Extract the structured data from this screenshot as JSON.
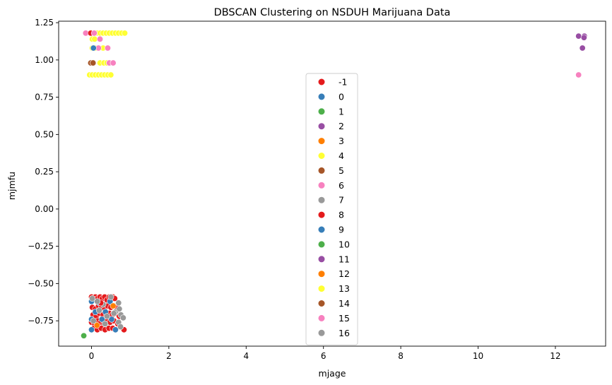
{
  "chart_data": {
    "type": "scatter",
    "title": "DBSCAN Clustering on NSDUH Marijuana Data",
    "xlabel": "mjage",
    "ylabel": "mjmfu",
    "xlim": [
      -0.85,
      13.3
    ],
    "ylim": [
      -0.92,
      1.26
    ],
    "x_ticks": [
      0,
      2,
      4,
      6,
      8,
      10,
      12
    ],
    "y_ticks": [
      -0.75,
      -0.5,
      -0.25,
      0.0,
      0.25,
      0.5,
      0.75,
      1.0,
      1.25
    ],
    "y_tick_labels": [
      "−0.75",
      "−0.50",
      "−0.25",
      "0.00",
      "0.25",
      "0.50",
      "0.75",
      "1.00",
      "1.25"
    ],
    "grid": false,
    "legend_position": "center",
    "series": [
      {
        "name": "-1",
        "color": "#e41a1c",
        "points": [
          [
            0.0,
            -0.59
          ],
          [
            0.05,
            -0.61
          ],
          [
            0.1,
            -0.59
          ],
          [
            0.16,
            -0.6
          ],
          [
            0.22,
            -0.59
          ],
          [
            0.28,
            -0.6
          ],
          [
            0.34,
            -0.59
          ],
          [
            0.4,
            -0.61
          ],
          [
            0.46,
            -0.59
          ],
          [
            0.55,
            -0.59
          ],
          [
            0.6,
            -0.6
          ],
          [
            0.02,
            -0.66
          ],
          [
            0.1,
            -0.67
          ],
          [
            0.18,
            -0.65
          ],
          [
            0.26,
            -0.66
          ],
          [
            0.34,
            -0.67
          ],
          [
            0.42,
            -0.65
          ],
          [
            0.5,
            -0.66
          ],
          [
            0.58,
            -0.65
          ],
          [
            0.66,
            -0.66
          ],
          [
            0.04,
            -0.71
          ],
          [
            0.12,
            -0.72
          ],
          [
            0.2,
            -0.7
          ],
          [
            0.3,
            -0.71
          ],
          [
            0.38,
            -0.72
          ],
          [
            0.46,
            -0.7
          ],
          [
            0.54,
            -0.71
          ],
          [
            0.64,
            -0.7
          ],
          [
            0.72,
            -0.72
          ],
          [
            0.0,
            -0.76
          ],
          [
            0.08,
            -0.77
          ],
          [
            0.16,
            -0.75
          ],
          [
            0.24,
            -0.76
          ],
          [
            0.32,
            -0.77
          ],
          [
            0.4,
            -0.75
          ],
          [
            0.48,
            -0.76
          ],
          [
            0.58,
            -0.75
          ],
          [
            0.68,
            -0.77
          ],
          [
            0.06,
            -0.8
          ],
          [
            0.15,
            -0.81
          ],
          [
            0.25,
            -0.8
          ],
          [
            0.35,
            -0.81
          ],
          [
            0.45,
            -0.8
          ],
          [
            0.55,
            -0.8
          ],
          [
            0.84,
            -0.81
          ]
        ]
      },
      {
        "name": "0",
        "color": "#377eb8",
        "points": [
          [
            0.0,
            -0.62
          ],
          [
            0.2,
            -0.63
          ],
          [
            0.48,
            -0.62
          ],
          [
            0.1,
            -0.69
          ],
          [
            0.36,
            -0.69
          ],
          [
            0.0,
            -0.74
          ],
          [
            0.27,
            -0.74
          ],
          [
            0.52,
            -0.74
          ],
          [
            0.0,
            -0.81
          ],
          [
            0.62,
            -0.81
          ]
        ]
      },
      {
        "name": "1",
        "color": "#4daf4a",
        "points": [
          [
            -0.2,
            -0.85
          ]
        ]
      },
      {
        "name": "2",
        "color": "#984ea3",
        "points": []
      },
      {
        "name": "3",
        "color": "#ff7f00",
        "points": [
          [
            0.56,
            -0.65
          ],
          [
            0.14,
            -0.78
          ]
        ]
      },
      {
        "name": "4",
        "color": "#ffff33",
        "points": [
          [
            0.15,
            1.18
          ],
          [
            0.22,
            1.18
          ],
          [
            0.3,
            1.18
          ],
          [
            0.38,
            1.18
          ],
          [
            0.46,
            1.18
          ],
          [
            0.54,
            1.18
          ],
          [
            0.62,
            1.18
          ],
          [
            0.7,
            1.18
          ],
          [
            0.78,
            1.18
          ],
          [
            0.86,
            1.18
          ],
          [
            0.02,
            1.14
          ],
          [
            0.08,
            1.14
          ],
          [
            0.02,
            1.08
          ],
          [
            0.1,
            1.08
          ],
          [
            0.3,
            1.08
          ],
          [
            0.05,
            0.98
          ],
          [
            0.22,
            0.98
          ],
          [
            0.32,
            0.98
          ],
          [
            0.4,
            0.98
          ],
          [
            -0.05,
            0.9
          ],
          [
            0.02,
            0.9
          ],
          [
            0.1,
            0.9
          ],
          [
            0.18,
            0.9
          ],
          [
            0.26,
            0.9
          ],
          [
            0.34,
            0.9
          ],
          [
            0.42,
            0.9
          ],
          [
            0.5,
            0.9
          ]
        ]
      },
      {
        "name": "5",
        "color": "#a65628",
        "points": [
          [
            -0.02,
            0.98
          ]
        ]
      },
      {
        "name": "6",
        "color": "#f781bf",
        "points": [
          [
            -0.15,
            1.18
          ],
          [
            0.22,
            1.14
          ],
          [
            0.18,
            1.08
          ],
          [
            0.42,
            1.08
          ],
          [
            0.46,
            0.98
          ],
          [
            0.56,
            0.98
          ]
        ]
      },
      {
        "name": "7",
        "color": "#999999",
        "points": [
          [
            0.02,
            -0.6
          ],
          [
            0.5,
            -0.59
          ],
          [
            0.3,
            -0.64
          ],
          [
            0.7,
            -0.63
          ],
          [
            0.2,
            -0.68
          ],
          [
            0.62,
            -0.69
          ],
          [
            0.72,
            -0.67
          ],
          [
            0.76,
            -0.71
          ],
          [
            0.82,
            -0.73
          ],
          [
            0.05,
            -0.75
          ],
          [
            0.35,
            -0.77
          ],
          [
            0.7,
            -0.76
          ]
        ]
      },
      {
        "name": "8",
        "color": "#e41a1c",
        "points": [
          [
            -0.02,
            1.18
          ],
          [
            0.24,
            -0.63
          ]
        ]
      },
      {
        "name": "9",
        "color": "#377eb8",
        "points": [
          [
            0.05,
            1.08
          ]
        ]
      },
      {
        "name": "10",
        "color": "#4daf4a",
        "points": []
      },
      {
        "name": "11",
        "color": "#984ea3",
        "points": [
          [
            12.6,
            1.16
          ],
          [
            12.75,
            1.16
          ],
          [
            12.74,
            1.15
          ],
          [
            12.7,
            1.08
          ]
        ]
      },
      {
        "name": "12",
        "color": "#ff7f00",
        "points": []
      },
      {
        "name": "13",
        "color": "#ffff33",
        "points": []
      },
      {
        "name": "14",
        "color": "#a65628",
        "points": [
          [
            0.04,
            0.98
          ]
        ]
      },
      {
        "name": "15",
        "color": "#f781bf",
        "points": [
          [
            0.07,
            1.18
          ],
          [
            12.6,
            0.9
          ]
        ]
      },
      {
        "name": "16",
        "color": "#999999",
        "points": [
          [
            0.15,
            -0.62
          ],
          [
            0.4,
            -0.72
          ],
          [
            0.58,
            -0.7
          ],
          [
            0.75,
            -0.79
          ]
        ]
      }
    ]
  }
}
